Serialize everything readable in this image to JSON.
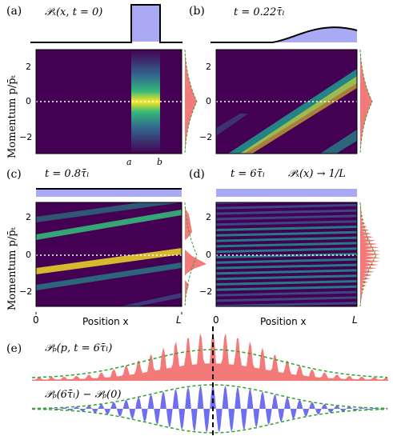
{
  "colors": {
    "bg_dark": "#440154",
    "viridis_mid": "#21918c",
    "viridis_hi": "#fde725",
    "dist_red": "#f47a7a",
    "bar_blue": "#a9a9f4",
    "blue_fill": "#6e6ef2",
    "envelope_green": "#33a02c"
  },
  "panels": {
    "a": {
      "letter": "(a)",
      "eq": "𝒫ₓ(x, t = 0)",
      "tick_a": "a",
      "tick_b": "b"
    },
    "b": {
      "letter": "(b)",
      "eq": "t = 0.22τ̄ₗ"
    },
    "c": {
      "letter": "(c)",
      "eq": "t = 0.8τ̄ₗ"
    },
    "d": {
      "letter": "(d)",
      "eq": "t = 6τ̄ₗ",
      "eq2": "𝒫ₓ(x) → 1/L"
    },
    "e": {
      "letter": "(e)",
      "eq_top": "𝒫ₚ(p, t = 6τ̄ₗ)",
      "eq_bottom": "𝒫ₚ(6τ̄ₗ) − 𝒫ₚ(0)"
    }
  },
  "axes": {
    "ylabel": "Momentum p/p̄ₜ",
    "xlabel": "Position x",
    "yticks": [
      "2",
      "0",
      "−2"
    ],
    "x_start": "0",
    "x_end": "L"
  }
}
